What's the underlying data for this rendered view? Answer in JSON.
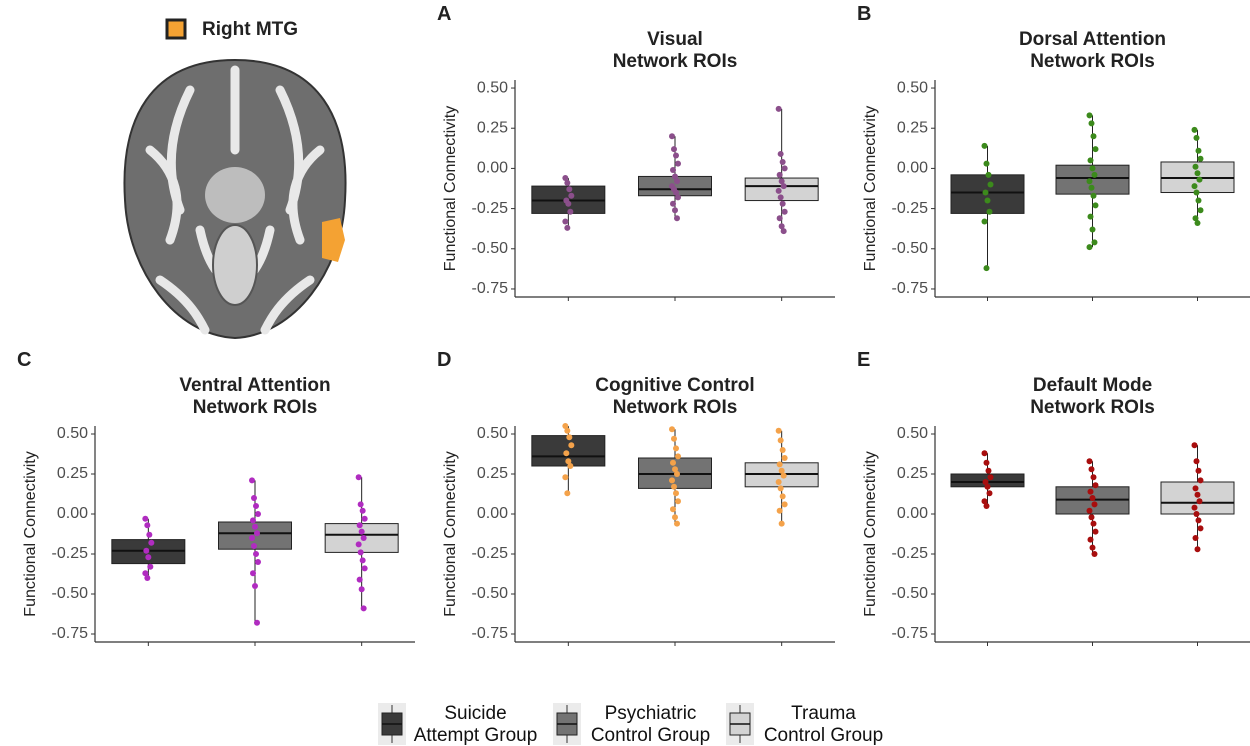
{
  "image_legend": {
    "label": "Right MTG",
    "color": "#f4a233"
  },
  "legend": [
    {
      "name": "Suicide Attempt Group",
      "color": "#3a3a3a"
    },
    {
      "name": "Psychiatric Control Group",
      "color": "#737373"
    },
    {
      "name": "Trauma Control Group",
      "color": "#d3d3d3"
    }
  ],
  "chart_data": [
    {
      "type": "box",
      "label": "A",
      "title": [
        "Visual",
        "Network ROIs"
      ],
      "ylabel": "Functional Connectivity",
      "ylim": [
        -0.8,
        0.55
      ],
      "yticks": [
        {
          "value": 0.5,
          "label": "0.50"
        },
        0.25,
        {
          "value": 0,
          "label": "0.00"
        },
        -0.25,
        {
          "value": -0.5,
          "label": "-0.50"
        },
        -0.75
      ],
      "point_color": "#8b4f8b",
      "boxes": [
        {
          "whisker_low": -0.37,
          "q1": -0.28,
          "median": -0.2,
          "q3": -0.11,
          "whisker_high": -0.06,
          "points": [
            -0.06,
            -0.09,
            -0.13,
            -0.17,
            -0.2,
            -0.22,
            -0.27,
            -0.33,
            -0.37
          ]
        },
        {
          "whisker_low": -0.31,
          "q1": -0.17,
          "median": -0.13,
          "q3": -0.05,
          "whisker_high": 0.2,
          "points": [
            0.2,
            0.12,
            0.08,
            0.03,
            -0.01,
            -0.05,
            -0.08,
            -0.11,
            -0.13,
            -0.15,
            -0.18,
            -0.22,
            -0.26,
            -0.31
          ]
        },
        {
          "whisker_low": -0.39,
          "q1": -0.2,
          "median": -0.11,
          "q3": -0.06,
          "whisker_high": 0.37,
          "points": [
            0.37,
            0.09,
            0.04,
            0.0,
            -0.04,
            -0.08,
            -0.11,
            -0.14,
            -0.18,
            -0.22,
            -0.27,
            -0.31,
            -0.36,
            -0.39
          ]
        }
      ]
    },
    {
      "type": "box",
      "label": "B",
      "title": [
        "Dorsal Attention",
        "Network ROIs"
      ],
      "ylabel": "Functional Connectivity",
      "ylim": [
        -0.8,
        0.55
      ],
      "yticks": [
        {
          "value": 0.5,
          "label": "0.50"
        },
        0.25,
        {
          "value": 0,
          "label": "0.00"
        },
        -0.25,
        {
          "value": -0.5,
          "label": "-0.50"
        },
        -0.75
      ],
      "point_color": "#3c8a1c",
      "boxes": [
        {
          "whisker_low": -0.62,
          "q1": -0.28,
          "median": -0.15,
          "q3": -0.04,
          "whisker_high": 0.14,
          "points": [
            0.14,
            0.03,
            -0.04,
            -0.1,
            -0.15,
            -0.2,
            -0.27,
            -0.33,
            -0.62
          ]
        },
        {
          "whisker_low": -0.49,
          "q1": -0.16,
          "median": -0.06,
          "q3": 0.02,
          "whisker_high": 0.33,
          "points": [
            0.33,
            0.28,
            0.2,
            0.12,
            0.05,
            0.0,
            -0.04,
            -0.08,
            -0.12,
            -0.17,
            -0.23,
            -0.3,
            -0.38,
            -0.46,
            -0.49
          ]
        },
        {
          "whisker_low": -0.34,
          "q1": -0.15,
          "median": -0.06,
          "q3": 0.04,
          "whisker_high": 0.24,
          "points": [
            0.24,
            0.19,
            0.11,
            0.06,
            0.01,
            -0.03,
            -0.07,
            -0.11,
            -0.15,
            -0.2,
            -0.26,
            -0.31,
            -0.34
          ]
        }
      ]
    },
    {
      "type": "box",
      "label": "C",
      "title": [
        "Ventral Attention",
        "Network ROIs"
      ],
      "ylabel": "Functional Connectivity",
      "ylim": [
        -0.8,
        0.55
      ],
      "yticks": [
        {
          "value": 0.5,
          "label": "0.50"
        },
        0.25,
        {
          "value": 0,
          "label": "0.00"
        },
        -0.25,
        {
          "value": -0.5,
          "label": "-0.50"
        },
        -0.75
      ],
      "point_color": "#b02cc0",
      "boxes": [
        {
          "whisker_low": -0.4,
          "q1": -0.31,
          "median": -0.23,
          "q3": -0.16,
          "whisker_high": -0.03,
          "points": [
            -0.03,
            -0.07,
            -0.13,
            -0.18,
            -0.23,
            -0.27,
            -0.33,
            -0.37,
            -0.4
          ]
        },
        {
          "whisker_low": -0.68,
          "q1": -0.22,
          "median": -0.12,
          "q3": -0.05,
          "whisker_high": 0.21,
          "points": [
            0.21,
            0.1,
            0.05,
            0.0,
            -0.04,
            -0.08,
            -0.12,
            -0.15,
            -0.2,
            -0.25,
            -0.3,
            -0.37,
            -0.45,
            -0.68
          ]
        },
        {
          "whisker_low": -0.59,
          "q1": -0.24,
          "median": -0.13,
          "q3": -0.06,
          "whisker_high": 0.23,
          "points": [
            0.23,
            0.06,
            0.02,
            -0.03,
            -0.07,
            -0.11,
            -0.15,
            -0.19,
            -0.24,
            -0.29,
            -0.34,
            -0.41,
            -0.47,
            -0.59
          ]
        }
      ]
    },
    {
      "type": "box",
      "label": "D",
      "title": [
        "Cognitive Control",
        "Network ROIs"
      ],
      "ylabel": "Functional Connectivity",
      "ylim": [
        -0.8,
        0.55
      ],
      "yticks": [
        {
          "value": 0.5,
          "label": "0.50"
        },
        0.25,
        {
          "value": 0,
          "label": "0.00"
        },
        -0.25,
        {
          "value": -0.5,
          "label": "-0.50"
        },
        -0.75
      ],
      "point_color": "#f4a24a",
      "boxes": [
        {
          "whisker_low": 0.13,
          "q1": 0.3,
          "median": 0.36,
          "q3": 0.49,
          "whisker_high": 0.55,
          "points": [
            0.55,
            0.52,
            0.48,
            0.43,
            0.38,
            0.33,
            0.3,
            0.23,
            0.13
          ]
        },
        {
          "whisker_low": -0.06,
          "q1": 0.16,
          "median": 0.25,
          "q3": 0.35,
          "whisker_high": 0.53,
          "points": [
            0.53,
            0.47,
            0.41,
            0.36,
            0.32,
            0.28,
            0.25,
            0.21,
            0.17,
            0.13,
            0.08,
            0.03,
            -0.02,
            -0.06
          ]
        },
        {
          "whisker_low": -0.06,
          "q1": 0.17,
          "median": 0.25,
          "q3": 0.32,
          "whisker_high": 0.52,
          "points": [
            0.52,
            0.46,
            0.4,
            0.35,
            0.31,
            0.27,
            0.24,
            0.2,
            0.16,
            0.11,
            0.06,
            0.02,
            -0.06
          ]
        }
      ]
    },
    {
      "type": "box",
      "label": "E",
      "title": [
        "Default Mode",
        "Network ROIs"
      ],
      "ylabel": "Functional Connectivity",
      "ylim": [
        -0.8,
        0.55
      ],
      "yticks": [
        {
          "value": 0.5,
          "label": "0.50"
        },
        0.25,
        {
          "value": 0,
          "label": "0.00"
        },
        -0.25,
        {
          "value": -0.5,
          "label": "-0.50"
        },
        -0.75
      ],
      "point_color": "#a80e0e",
      "boxes": [
        {
          "whisker_low": 0.05,
          "q1": 0.17,
          "median": 0.2,
          "q3": 0.25,
          "whisker_high": 0.38,
          "points": [
            0.38,
            0.32,
            0.27,
            0.23,
            0.2,
            0.17,
            0.13,
            0.08,
            0.05
          ]
        },
        {
          "whisker_low": -0.25,
          "q1": 0.0,
          "median": 0.09,
          "q3": 0.17,
          "whisker_high": 0.33,
          "points": [
            0.33,
            0.28,
            0.23,
            0.18,
            0.14,
            0.1,
            0.06,
            0.02,
            -0.02,
            -0.06,
            -0.11,
            -0.16,
            -0.21,
            -0.25
          ]
        },
        {
          "whisker_low": -0.22,
          "q1": 0.0,
          "median": 0.07,
          "q3": 0.2,
          "whisker_high": 0.43,
          "points": [
            0.43,
            0.33,
            0.27,
            0.21,
            0.16,
            0.12,
            0.08,
            0.04,
            0.0,
            -0.04,
            -0.09,
            -0.15,
            -0.22
          ]
        }
      ]
    }
  ]
}
